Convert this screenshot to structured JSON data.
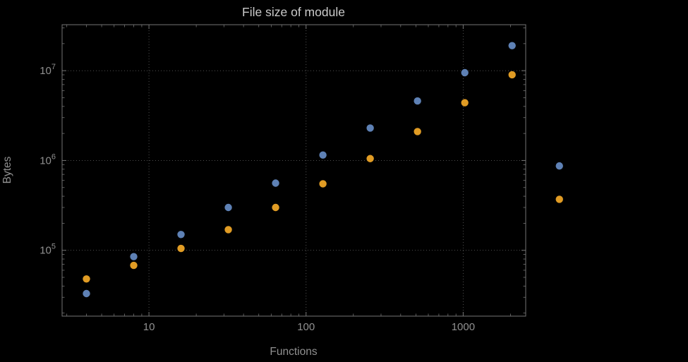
{
  "chart_data": {
    "type": "scatter",
    "title": "File size of module",
    "grid": true,
    "legend": false,
    "colors": {
      "background": "#000000",
      "frame": "#747474",
      "grid": "#5a5a5a",
      "text": "#909090",
      "title": "#cacaca"
    },
    "x_axis": {
      "label": "Functions",
      "scale": "log",
      "ticks": [
        10,
        100,
        1000
      ],
      "range": [
        2.8,
        2500
      ]
    },
    "y_axis": {
      "label": "Bytes",
      "scale": "log",
      "ticks": [
        {
          "base": 10,
          "exp": 5
        },
        {
          "base": 10,
          "exp": 6
        },
        {
          "base": 10,
          "exp": 7
        }
      ],
      "range": [
        18500,
        32500000
      ]
    },
    "x": [
      4,
      8,
      16,
      32,
      64,
      128,
      256,
      512,
      1024,
      2048,
      4096
    ],
    "series": [
      {
        "id": "blue",
        "color": "#5e81b5",
        "values": [
          33000,
          85000,
          150000,
          300000,
          560000,
          1150000,
          2300000,
          4600000,
          9500000,
          19000000,
          870000
        ]
      },
      {
        "id": "orange",
        "color": "#e19c24",
        "values": [
          48000,
          68000,
          105000,
          170000,
          300000,
          550000,
          1050000,
          2100000,
          4400000,
          9000000,
          370000
        ]
      }
    ]
  }
}
